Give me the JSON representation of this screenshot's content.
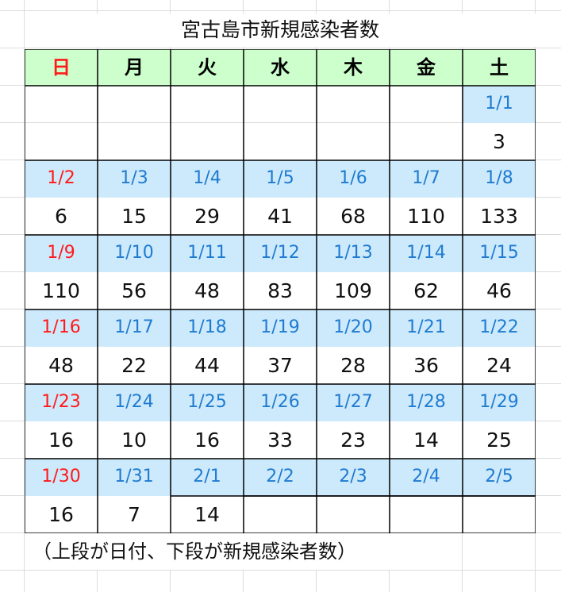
{
  "title": "宮古島市新規感染者数",
  "weekdays": [
    "日",
    "月",
    "火",
    "水",
    "木",
    "金",
    "土"
  ],
  "colors": {
    "header_bg": "#ccffcc",
    "date_bg": "#cdeafc",
    "date_text": "#1f7bd0",
    "sunday_text": "#ff1a1a"
  },
  "weeks": [
    {
      "dates": [
        "",
        "",
        "",
        "",
        "",
        "",
        "1/1"
      ],
      "counts": [
        "",
        "",
        "",
        "",
        "",
        "",
        "3"
      ]
    },
    {
      "dates": [
        "1/2",
        "1/3",
        "1/4",
        "1/5",
        "1/6",
        "1/7",
        "1/8"
      ],
      "counts": [
        "6",
        "15",
        "29",
        "41",
        "68",
        "110",
        "133"
      ]
    },
    {
      "dates": [
        "1/9",
        "1/10",
        "1/11",
        "1/12",
        "1/13",
        "1/14",
        "1/15"
      ],
      "counts": [
        "110",
        "56",
        "48",
        "83",
        "109",
        "62",
        "46"
      ]
    },
    {
      "dates": [
        "1/16",
        "1/17",
        "1/18",
        "1/19",
        "1/20",
        "1/21",
        "1/22"
      ],
      "counts": [
        "48",
        "22",
        "44",
        "37",
        "28",
        "36",
        "24"
      ]
    },
    {
      "dates": [
        "1/23",
        "1/24",
        "1/25",
        "1/26",
        "1/27",
        "1/28",
        "1/29"
      ],
      "counts": [
        "16",
        "10",
        "16",
        "33",
        "23",
        "14",
        "25"
      ]
    },
    {
      "dates": [
        "1/30",
        "1/31",
        "2/1",
        "2/2",
        "2/3",
        "2/4",
        "2/5"
      ],
      "counts": [
        "16",
        "7",
        "14",
        "",
        "",
        "",
        ""
      ]
    }
  ],
  "note": "（上段が日付、下段が新規感染者数）"
}
